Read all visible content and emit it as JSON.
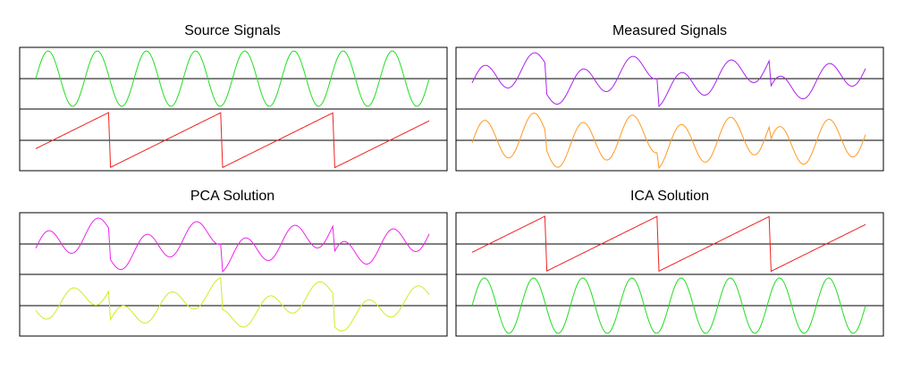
{
  "chart_data": [
    {
      "type": "line",
      "title": "Source Signals",
      "samples": 200,
      "series": [
        {
          "color": "#22dd22",
          "formula": {
            "sin": [
              [
                1,
                8,
                0
              ]
            ]
          }
        },
        {
          "color": "#ee2222",
          "formula": {
            "saw": [
              [
                1,
                3.5,
                0.35
              ]
            ]
          }
        }
      ]
    },
    {
      "type": "line",
      "title": "Measured Signals",
      "samples": 200,
      "series": [
        {
          "color": "#aa22ee",
          "formula": {
            "sin": [
              [
                0.55,
                8,
                0
              ]
            ],
            "saw": [
              [
                0.55,
                3.5,
                0.35
              ]
            ]
          }
        },
        {
          "color": "#ff9922",
          "formula": {
            "sin": [
              [
                0.75,
                8,
                0
              ]
            ],
            "saw": [
              [
                0.3,
                3.5,
                0.35
              ]
            ]
          }
        }
      ]
    },
    {
      "type": "line",
      "title": "PCA Solution",
      "samples": 200,
      "series": [
        {
          "color": "#ee22ee",
          "formula": {
            "sin": [
              [
                0.55,
                8,
                0
              ]
            ],
            "saw": [
              [
                0.55,
                3.5,
                0.35
              ]
            ]
          }
        },
        {
          "color": "#ccee22",
          "formula": {
            "sin": [
              [
                0.45,
                8,
                3.14
              ]
            ],
            "saw": [
              [
                0.6,
                3.5,
                0.35
              ]
            ]
          }
        }
      ]
    },
    {
      "type": "line",
      "title": "ICA Solution",
      "samples": 200,
      "series": [
        {
          "color": "#ee2222",
          "formula": {
            "saw": [
              [
                1,
                3.5,
                0.35
              ]
            ]
          }
        },
        {
          "color": "#22dd22",
          "formula": {
            "sin": [
              [
                1,
                8,
                0
              ]
            ]
          }
        }
      ]
    }
  ]
}
